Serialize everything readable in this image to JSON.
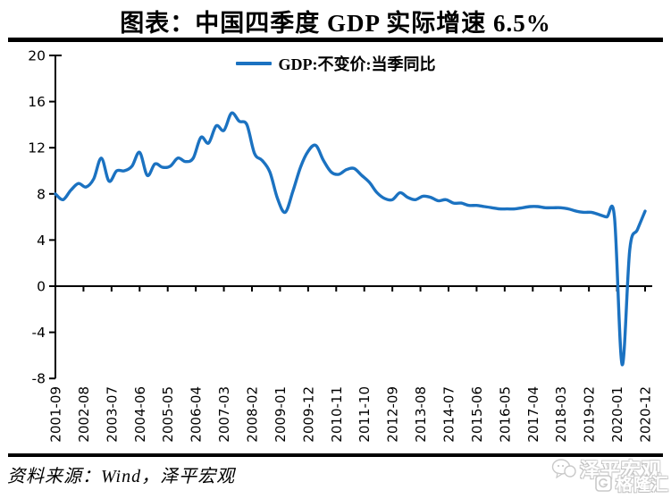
{
  "page": {
    "title": "图表：中国四季度 GDP 实际增速 6.5%",
    "source": "资料来源：Wind，泽平宏观",
    "watermark": {
      "brand": "泽平宏观",
      "overlay_brand": "格隆汇"
    },
    "colors": {
      "accent": "#1B72C1",
      "axis": "#000000",
      "background": "#ffffff"
    }
  },
  "chart_data": {
    "type": "line",
    "title": "图表：中国四季度 GDP 实际增速 6.5%",
    "legend": "GDP:不变价:当季同比",
    "legend_position": "top-center",
    "line_color": "#1B72C1",
    "grid": false,
    "frequency": "quarterly",
    "x_first": "2001-09",
    "x_last": "2020-12",
    "x_tick_labels": [
      "2001-09",
      "2002-08",
      "2003-07",
      "2004-06",
      "2005-05",
      "2006-04",
      "2007-03",
      "2008-02",
      "2009-01",
      "2009-12",
      "2010-11",
      "2011-10",
      "2012-09",
      "2013-08",
      "2014-07",
      "2015-06",
      "2016-05",
      "2017-04",
      "2018-03",
      "2019-02",
      "2020-01",
      "2020-12"
    ],
    "yticks": [
      20,
      16,
      12,
      8,
      4,
      0,
      -4,
      -8
    ],
    "ylim": [
      -8,
      20
    ],
    "ylabel": "",
    "xlabel": "",
    "values": [
      8.0,
      7.5,
      8.3,
      8.9,
      8.6,
      9.3,
      11.1,
      9.1,
      10.0,
      10.0,
      10.4,
      11.6,
      9.6,
      10.6,
      10.3,
      10.4,
      11.1,
      10.8,
      11.1,
      12.9,
      12.4,
      13.9,
      13.5,
      15.0,
      14.3,
      14.0,
      11.5,
      10.9,
      9.9,
      7.6,
      6.4,
      8.2,
      10.3,
      11.7,
      12.2,
      10.9,
      9.9,
      9.7,
      10.1,
      10.2,
      9.6,
      9.0,
      8.1,
      7.6,
      7.5,
      8.1,
      7.7,
      7.5,
      7.8,
      7.7,
      7.4,
      7.5,
      7.2,
      7.2,
      7.0,
      7.0,
      6.9,
      6.8,
      6.7,
      6.7,
      6.7,
      6.8,
      6.9,
      6.9,
      6.8,
      6.8,
      6.8,
      6.7,
      6.5,
      6.4,
      6.4,
      6.2,
      6.0,
      6.0,
      -6.8,
      3.2,
      4.9,
      6.5
    ]
  }
}
